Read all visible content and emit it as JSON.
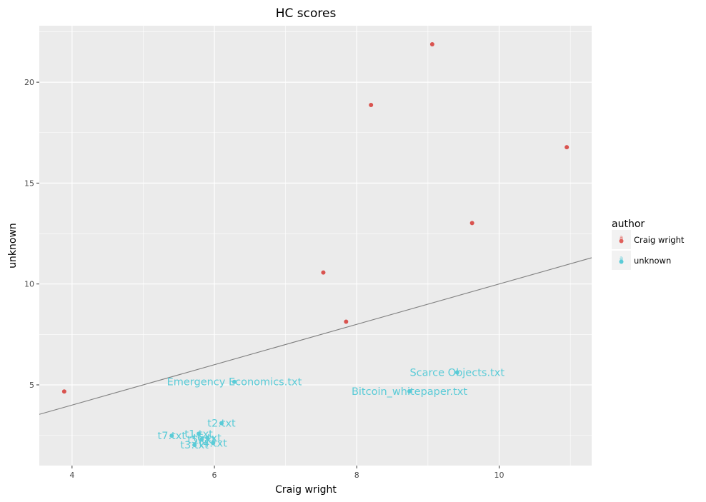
{
  "chart_data": {
    "type": "scatter",
    "title": "HC scores",
    "xlabel": "Craig wright",
    "ylabel": "unknown",
    "xlim": [
      3.54,
      11.3
    ],
    "ylim": [
      1.0,
      22.8
    ],
    "x_ticks": [
      4,
      6,
      8,
      10
    ],
    "y_ticks": [
      5,
      10,
      15,
      20
    ],
    "x_tick_labels": [
      "4",
      "6",
      "8",
      "10"
    ],
    "y_tick_labels": [
      "5",
      "10",
      "15",
      "20"
    ],
    "grid": true,
    "legend": {
      "title": "author",
      "placement": "right",
      "entries": [
        {
          "label": "Craig wright",
          "color": "#e0605b"
        },
        {
          "label": "unknown",
          "color": "#5acbd7"
        }
      ]
    },
    "reference_line": {
      "slope": 1,
      "intercept": 0,
      "color": "#7f7f7f"
    },
    "series": [
      {
        "name": "Craig wright",
        "color": "#d9534f",
        "points": [
          {
            "x": 3.89,
            "y": 4.67
          },
          {
            "x": 7.53,
            "y": 10.57
          },
          {
            "x": 7.85,
            "y": 8.13
          },
          {
            "x": 8.2,
            "y": 18.87
          },
          {
            "x": 9.06,
            "y": 21.88
          },
          {
            "x": 9.62,
            "y": 13.02
          },
          {
            "x": 10.95,
            "y": 16.78
          }
        ]
      },
      {
        "name": "unknown",
        "color": "#5acbd7",
        "points": [
          {
            "x": 6.28,
            "y": 5.15,
            "label": "Emergency Economics.txt"
          },
          {
            "x": 9.41,
            "y": 5.62,
            "label": "Scarce Objects.txt"
          },
          {
            "x": 8.74,
            "y": 4.68,
            "label": "Bitcoin_whitepaper.txt"
          },
          {
            "x": 6.1,
            "y": 3.1,
            "label": "t2.txt"
          },
          {
            "x": 5.78,
            "y": 2.58,
            "label": "t1.txt"
          },
          {
            "x": 5.4,
            "y": 2.48,
            "label": "t7.txt"
          },
          {
            "x": 5.9,
            "y": 2.38,
            "label": "t6.txt"
          },
          {
            "x": 5.82,
            "y": 2.3,
            "label": "t5.txt"
          },
          {
            "x": 5.98,
            "y": 2.12,
            "label": "t4.txt"
          },
          {
            "x": 5.72,
            "y": 2.02,
            "label": "t3.txt"
          }
        ]
      }
    ]
  }
}
